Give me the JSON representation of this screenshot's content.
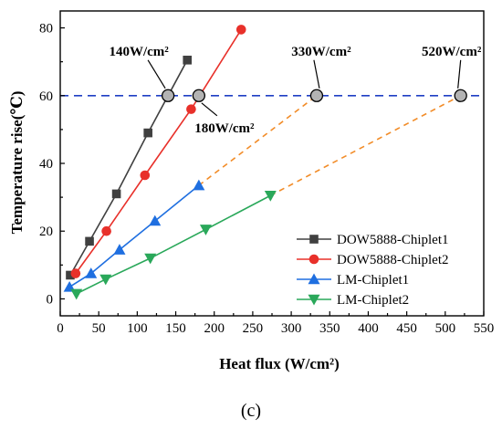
{
  "chart_data": {
    "type": "line",
    "xlabel": "Heat flux (W/cm²)",
    "ylabel": "Temperature rise(℃)",
    "xlim": [
      0,
      550
    ],
    "ylim": [
      -5,
      85
    ],
    "x_ticks": [
      0,
      50,
      100,
      150,
      200,
      250,
      300,
      350,
      400,
      450,
      500,
      550
    ],
    "y_ticks": [
      0,
      20,
      40,
      60,
      80
    ],
    "grid": false,
    "legend_position": "bottom-right",
    "caption": "(c)",
    "reference_line": {
      "y": 60,
      "color": "#1f3fc4",
      "style": "dashed"
    },
    "series": [
      {
        "name": "DOW5888-Chiplet1",
        "color": "#404040",
        "marker": "square",
        "x": [
          13,
          38,
          73,
          114,
          165
        ],
        "y": [
          7,
          17,
          31,
          49,
          70.5
        ]
      },
      {
        "name": "DOW5888-Chiplet2",
        "color": "#e8302a",
        "marker": "circle",
        "x": [
          20,
          60,
          110,
          170,
          235
        ],
        "y": [
          7.5,
          20,
          36.5,
          56,
          79.5
        ]
      },
      {
        "name": "LM-Chiplet1",
        "color": "#1f6fe0",
        "marker": "triangle-up",
        "x": [
          12,
          40,
          77,
          123,
          180
        ],
        "y": [
          3.5,
          7.5,
          14.5,
          23,
          33.5
        ]
      },
      {
        "name": "LM-Chiplet2",
        "color": "#2aa85a",
        "marker": "triangle-down",
        "x": [
          21,
          59,
          117,
          189,
          273
        ],
        "y": [
          1.5,
          5.8,
          12,
          20.5,
          30.5
        ]
      }
    ],
    "extrapolations": [
      {
        "color": "#f28c28",
        "x": [
          180,
          333
        ],
        "y": [
          33.5,
          60
        ]
      },
      {
        "color": "#f28c28",
        "x": [
          273,
          520
        ],
        "y": [
          30.5,
          60
        ]
      }
    ],
    "annotations": [
      {
        "text": "140W/cm²",
        "x": 140,
        "y": 60
      },
      {
        "text": "180W/cm²",
        "x": 180,
        "y": 60
      },
      {
        "text": "330W/cm²",
        "x": 333,
        "y": 60
      },
      {
        "text": "520W/cm²",
        "x": 520,
        "y": 60
      }
    ]
  }
}
